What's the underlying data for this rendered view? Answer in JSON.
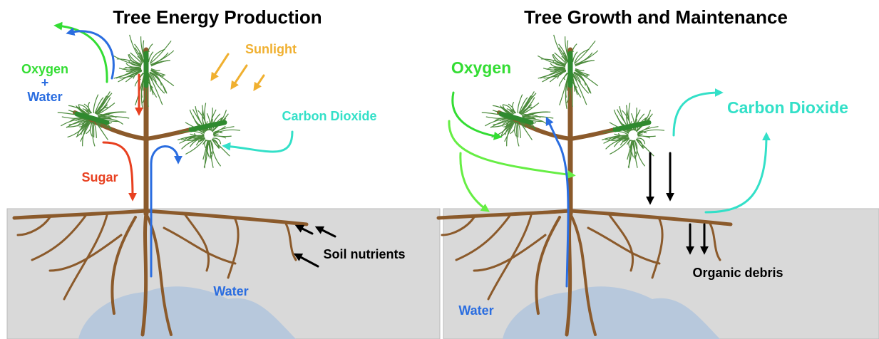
{
  "panels": [
    {
      "title": "Tree Energy Production",
      "labels": {
        "oxygen": "Oxygen",
        "plus": "+",
        "water_top": "Water",
        "sunlight": "Sunlight",
        "carbon_dioxide": "Carbon Dioxide",
        "sugar": "Sugar",
        "soil_nutrients": "Soil nutrients",
        "water_bottom": "Water"
      }
    },
    {
      "title": "Tree Growth and Maintenance",
      "labels": {
        "oxygen": "Oxygen",
        "carbon_dioxide": "Carbon Dioxide",
        "organic_debris": "Organic debris",
        "water": "Water"
      }
    }
  ]
}
